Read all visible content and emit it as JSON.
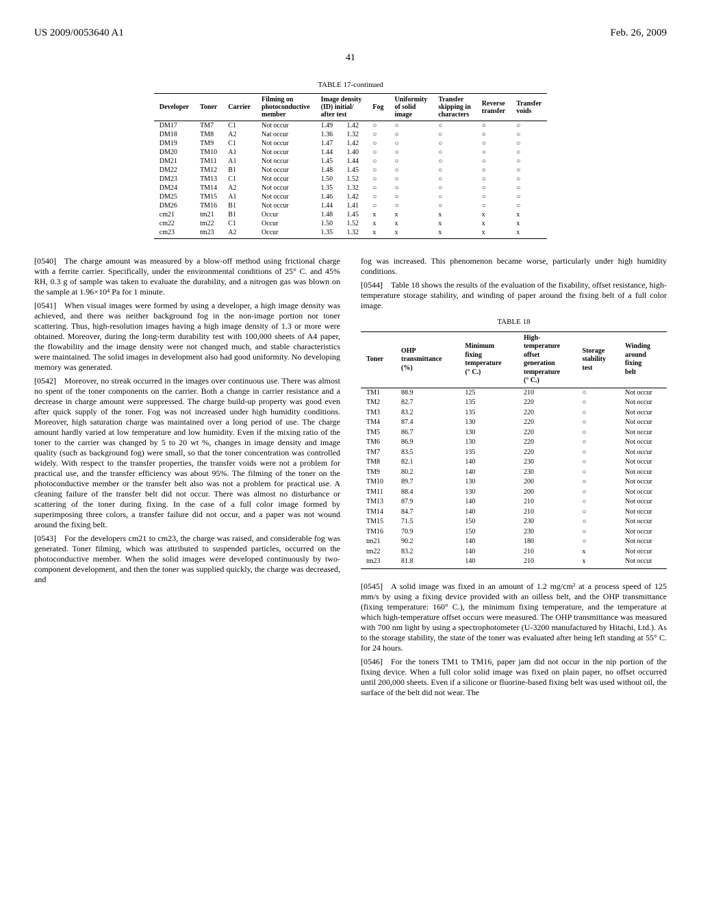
{
  "header": {
    "left": "US 2009/0053640 A1",
    "right": "Feb. 26, 2009"
  },
  "page_number": "41",
  "table17": {
    "title": "TABLE 17-continued",
    "columns": [
      "Developer",
      "Toner",
      "Carrier",
      "Filming on photoconductive member",
      "Image density (ID) initial/ after test",
      "",
      "Fog",
      "Uniformity of solid image",
      "Transfer skipping in characters",
      "Reverse transfer",
      "Transfer voids"
    ],
    "rows": [
      [
        "DM17",
        "TM7",
        "C1",
        "Not occur",
        "1.49",
        "1.42",
        "○",
        "○",
        "○",
        "○",
        "○"
      ],
      [
        "DM18",
        "TM8",
        "A2",
        "Nat occur",
        "1.36",
        "1.32",
        "○",
        "○",
        "○",
        "○",
        "○"
      ],
      [
        "DM19",
        "TM9",
        "C1",
        "Not occur",
        "1.47",
        "1.42",
        "○",
        "○",
        "○",
        "○",
        "○"
      ],
      [
        "DM20",
        "TM10",
        "A1",
        "Not occur",
        "1.44",
        "1.40",
        "○",
        "○",
        "○",
        "○",
        "○"
      ],
      [
        "DM21",
        "TM11",
        "A1",
        "Not occur",
        "1.45",
        "1.44",
        "○",
        "○",
        "○",
        "○",
        "○"
      ],
      [
        "DM22",
        "TM12",
        "B1",
        "Not occur",
        "1.48",
        "1.45",
        "○",
        "○",
        "○",
        "○",
        "○"
      ],
      [
        "DM23",
        "TM13",
        "C1",
        "Not occur",
        "1.50",
        "1.52",
        "○",
        "○",
        "○",
        "○",
        "○"
      ],
      [
        "DM24",
        "TM14",
        "A2",
        "Not occur",
        "1.35",
        "1.32",
        "○",
        "○",
        "○",
        "○",
        "○"
      ],
      [
        "DM25",
        "TM15",
        "A1",
        "Not occur",
        "1.46",
        "1.42",
        "○",
        "○",
        "○",
        "○",
        "○"
      ],
      [
        "DM26",
        "TM16",
        "B1",
        "Not occur",
        "1.44",
        "1.41",
        "○",
        "○",
        "○",
        "○",
        "○"
      ],
      [
        "cm21",
        "tm21",
        "B1",
        "Occur",
        "1.48",
        "1.45",
        "x",
        "x",
        "x",
        "x",
        "x"
      ],
      [
        "cm22",
        "tm22",
        "C1",
        "Occur",
        "1.50",
        "1.52",
        "x",
        "x",
        "x",
        "x",
        "x"
      ],
      [
        "cm23",
        "tm23",
        "A2",
        "Occur",
        "1.35",
        "1.32",
        "x",
        "x",
        "x",
        "x",
        "x"
      ]
    ]
  },
  "paragraphs": {
    "p0540": "[0540] The charge amount was measured by a blow-off method using frictional charge with a ferrite carrier. Specifically, under the environmental conditions of 25° C. and 45% RH, 0.3 g of sample was taken to evaluate the durability, and a nitrogen gas was blown on the sample at 1.96×10⁴ Pa for 1 minute.",
    "p0541": "[0541] When visual images were formed by using a developer, a high image density was achieved, and there was neither background fog in the non-image portion nor toner scattering. Thus, high-resolution images having a high image density of 1.3 or more were obtained. Moreover, during the long-term durability test with 100,000 sheets of A4 paper, the flowability and the image density were not changed much, and stable characteristics were maintained. The solid images in development also had good uniformity. No developing memory was generated.",
    "p0542": "[0542] Moreover, no streak occurred in the images over continuous use. There was almost no spent of the toner components on the carrier. Both a change in carrier resistance and a decrease in charge amount were suppressed. The charge build-up property was good even after quick supply of the toner. Fog was not increased under high humidity conditions. Moreover, high saturation charge was maintained over a long period of use. The charge amount hardly varied at low temperature and low humidity. Even if the mixing ratio of the toner to the carrier was changed by 5 to 20 wt %, changes in image density and image quality (such as background fog) were small, so that the toner concentration was controlled widely. With respect to the transfer properties, the transfer voids were not a problem for practical use, and the transfer efficiency was about 95%. The filming of the toner on the photoconductive member or the transfer belt also was not a problem for practical use. A cleaning failure of the transfer belt did not occur. There was almost no disturbance or scattering of the toner during fixing. In the case of a full color image formed by superimposing three colors, a transfer failure did not occur, and a paper was not wound around the fixing belt.",
    "p0543": "[0543] For the developers cm21 to cm23, the charge was raised, and considerable fog was generated. Toner filming, which was attributed to suspended particles, occurred on the photoconductive member. When the solid images were developed continuously by two-component development, and then the toner was supplied quickly, the charge was decreased, and",
    "p0543b": "fog was increased. This phenomenon became worse, particularly under high humidity conditions.",
    "p0544": "[0544] Table 18 shows the results of the evaluation of the fixability, offset resistance, high-temperature storage stability, and winding of paper around the fixing belt of a full color image.",
    "p0545": "[0545] A solid image was fixed in an amount of 1.2 mg/cm² at a process speed of 125 mm/s by using a fixing device provided with an oilless belt, and the OHP transmittance (fixing temperature: 160° C.), the minimum fixing temperature, and the temperature at which high-temperature offset occurs were measured. The OHP transmittance was measured with 700 nm light by using a spectrophotometer (U-3200 manufactured by Hitachi, Ltd.). As to the storage stability, the state of the toner was evaluated after being left standing at 55° C. for 24 hours.",
    "p0546": "[0546] For the toners TM1 to TM16, paper jam did not occur in the nip portion of the fixing device. When a full color solid image was fixed on plain paper, no offset occurred until 200,000 sheets. Even if a silicone or fluorine-based fixing belt was used without oil, the surface of the belt did not wear. The"
  },
  "table18": {
    "title": "TABLE 18",
    "columns": [
      "Toner",
      "OHP transmittance (%)",
      "Minimum fixing temperature (° C.)",
      "High-temperature offset generation temperature (° C.)",
      "Storage stability test",
      "Winding around fixing belt"
    ],
    "rows": [
      [
        "TM1",
        "88.9",
        "125",
        "210",
        "○",
        "Not occur"
      ],
      [
        "TM2",
        "82.7",
        "135",
        "220",
        "○",
        "Not occur"
      ],
      [
        "TM3",
        "83.2",
        "135",
        "220",
        "○",
        "Not occur"
      ],
      [
        "TM4",
        "87.4",
        "130",
        "220",
        "○",
        "Not occur"
      ],
      [
        "TM5",
        "86.7",
        "130",
        "220",
        "○",
        "Not occur"
      ],
      [
        "TM6",
        "86.9",
        "130",
        "220",
        "○",
        "Not occur"
      ],
      [
        "TM7",
        "83.5",
        "135",
        "220",
        "○",
        "Not occur"
      ],
      [
        "TM8",
        "82.1",
        "140",
        "230",
        "○",
        "Not occur"
      ],
      [
        "TM9",
        "80.2",
        "140",
        "230",
        "○",
        "Not occur"
      ],
      [
        "TM10",
        "89.7",
        "130",
        "200",
        "○",
        "Not occur"
      ],
      [
        "TM11",
        "88.4",
        "130",
        "200",
        "○",
        "Not occur"
      ],
      [
        "TM13",
        "87.9",
        "140",
        "210",
        "○",
        "Not occur"
      ],
      [
        "TM14",
        "84.7",
        "140",
        "210",
        "○",
        "Not occur"
      ],
      [
        "TM15",
        "71.5",
        "150",
        "230",
        "○",
        "Not occur"
      ],
      [
        "TM16",
        "70.9",
        "150",
        "230",
        "○",
        "Not occur"
      ],
      [
        "tm21",
        "90.2",
        "140",
        "180",
        "○",
        "Not occur"
      ],
      [
        "tm22",
        "83.2",
        "140",
        "210",
        "x",
        "Not occur"
      ],
      [
        "tm23",
        "81.8",
        "140",
        "210",
        "x",
        "Not occur"
      ]
    ]
  }
}
